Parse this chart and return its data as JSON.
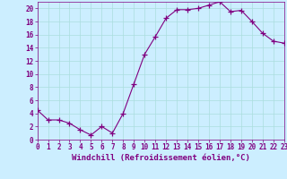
{
  "x": [
    0,
    1,
    2,
    3,
    4,
    5,
    6,
    7,
    8,
    9,
    10,
    11,
    12,
    13,
    14,
    15,
    16,
    17,
    18,
    19,
    20,
    21,
    22,
    23
  ],
  "y": [
    4.5,
    3.0,
    3.0,
    2.5,
    1.5,
    0.7,
    2.0,
    1.0,
    4.0,
    8.5,
    13.0,
    15.7,
    18.5,
    19.8,
    19.8,
    20.0,
    20.5,
    21.0,
    19.5,
    19.7,
    18.0,
    16.2,
    15.0,
    14.7
  ],
  "line_color": "#800080",
  "marker": "+",
  "marker_color": "#800080",
  "bg_color": "#cceeff",
  "grid_color": "#aadddd",
  "xlabel": "Windchill (Refroidissement éolien,°C)",
  "xlim": [
    0,
    23
  ],
  "ylim": [
    0,
    21
  ],
  "yticks": [
    0,
    2,
    4,
    6,
    8,
    10,
    12,
    14,
    16,
    18,
    20
  ],
  "xticks": [
    0,
    1,
    2,
    3,
    4,
    5,
    6,
    7,
    8,
    9,
    10,
    11,
    12,
    13,
    14,
    15,
    16,
    17,
    18,
    19,
    20,
    21,
    22,
    23
  ],
  "tick_color": "#800080",
  "label_fontsize": 6.5,
  "tick_fontsize": 5.5,
  "spine_color": "#800080"
}
